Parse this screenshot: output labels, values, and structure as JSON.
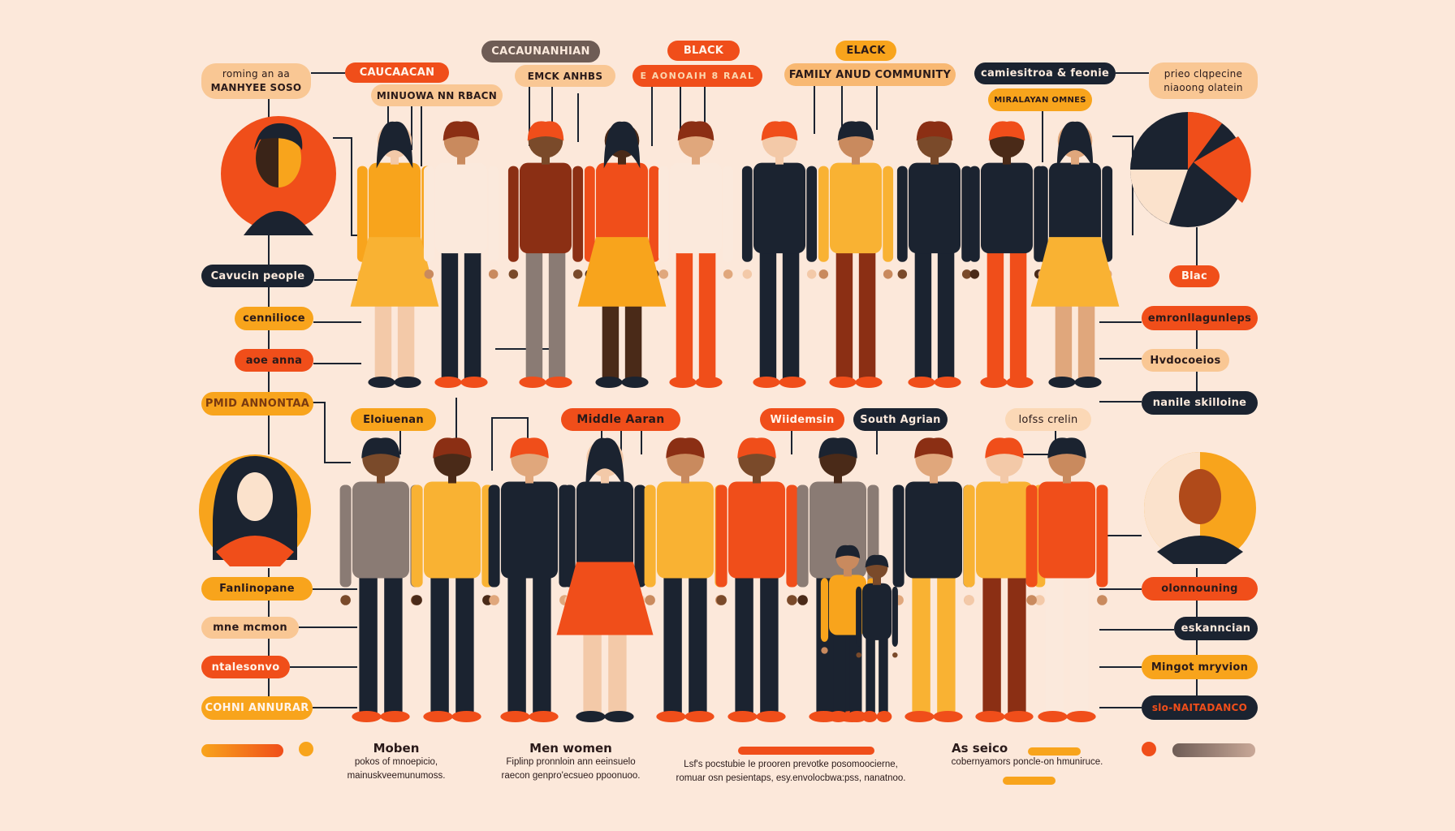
{
  "palette": {
    "dark": "#1b2330",
    "red": "#f04e1a",
    "orange": "#f8a41c",
    "peach": "#f9c794",
    "gray": "#6e5c55",
    "background": "#fce8da"
  },
  "top_labels": {
    "roming": [
      "roming an aa",
      "MANHYEE SOSO"
    ],
    "caucaacan": "CAUCAACAN",
    "minuowa": "MINUOWA NN RBACN",
    "cacaunanhian": "CACAUNANHIAN",
    "emck": "EMCK ANHBS",
    "black": "BLACK",
    "aonoaih": "E AONOAIH 8 RAAL",
    "elack": "ELACK",
    "family": "FAMILY ANUD COMMUNITY",
    "camiesitroa": "camiesitroa & feonie",
    "miralayan": "MIRALAYAN OMNES",
    "prieo": [
      "prieo clqpecine",
      "niaoong olatein"
    ]
  },
  "left_labels": [
    "Cavucin people",
    "cennilioce",
    "aoe anna",
    "PMID ANNONTAA",
    "Fanlinopane",
    "mne mcmon",
    "ntalesonvo",
    "COHNI ANNURAR"
  ],
  "right_labels": [
    "Blac",
    "emronllagunleps",
    "Hvdocoeios",
    "nanile skilloine",
    "olonnouning",
    "eskanncian",
    "Mingot mryvion",
    "slo-NAITADANCO"
  ],
  "middle_labels": [
    "Eloiuenan",
    "Middle Aaran",
    "Wiidemsin",
    "South Agrian",
    "lofss crelin"
  ],
  "footer": [
    {
      "heading": "Moben",
      "lines": [
        "pokos of mnoepicio,",
        "mainuskveemunumoss."
      ]
    },
    {
      "heading": "Men women",
      "lines": [
        "Fiplinp pronnloin ann eeinsuelo",
        "raecon genpro'ecsueo ppoonuoo."
      ]
    },
    {
      "heading": "",
      "lines": [
        "Lsf's pocstubie Ie prooren prevotke posomoocierne,",
        "romuar osn pesientaps, esy.envolocbwa:pss, nanatnoo."
      ]
    },
    {
      "heading": "As seico",
      "lines": [
        "cobernyamors poncle-on hmuniruce."
      ]
    }
  ]
}
